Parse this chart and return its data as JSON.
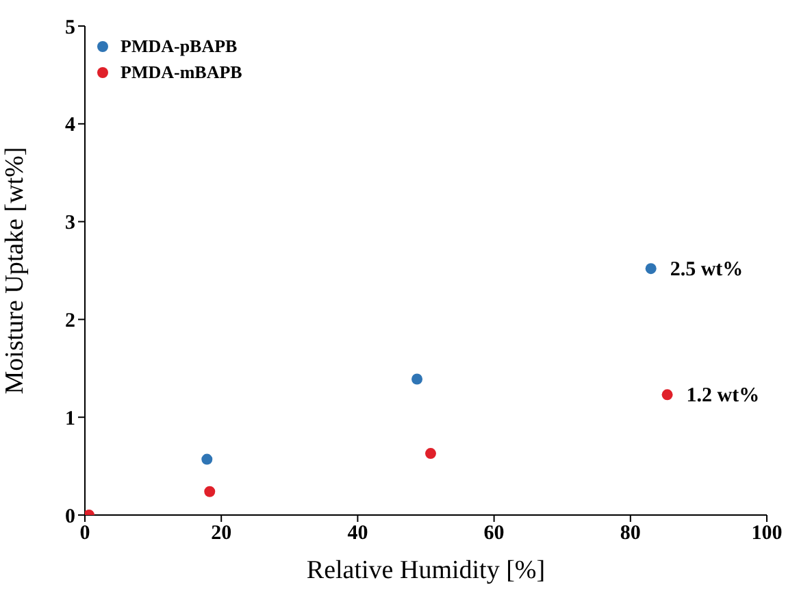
{
  "chart_data": {
    "type": "scatter",
    "xlabel": "Relative Humidity [%]",
    "ylabel": "Moisture Uptake [wt%]",
    "xlim": [
      0,
      100
    ],
    "xticks": [
      0,
      20,
      40,
      60,
      80,
      100
    ],
    "ylim": [
      0,
      5
    ],
    "yticks": [
      0,
      1,
      2,
      3,
      4,
      5
    ],
    "grid": false,
    "legend": "top left",
    "marker": "circle",
    "series": [
      {
        "name": "PMDA-pBAPB",
        "color": "#2f75b5",
        "x": [
          17.9,
          48.7,
          83.0
        ],
        "values": [
          0.57,
          1.39,
          2.52
        ]
      },
      {
        "name": "PMDA-mBAPB",
        "color": "#e0202a",
        "x": [
          0.6,
          18.3,
          50.7,
          85.4
        ],
        "values": [
          0,
          0.24,
          0.63,
          1.23
        ]
      }
    ],
    "annotations": [
      {
        "text": "2.5 wt%",
        "x": 83.0,
        "y": 2.52
      },
      {
        "text": "1.2 wt%",
        "x": 85.4,
        "y": 1.23
      }
    ]
  }
}
